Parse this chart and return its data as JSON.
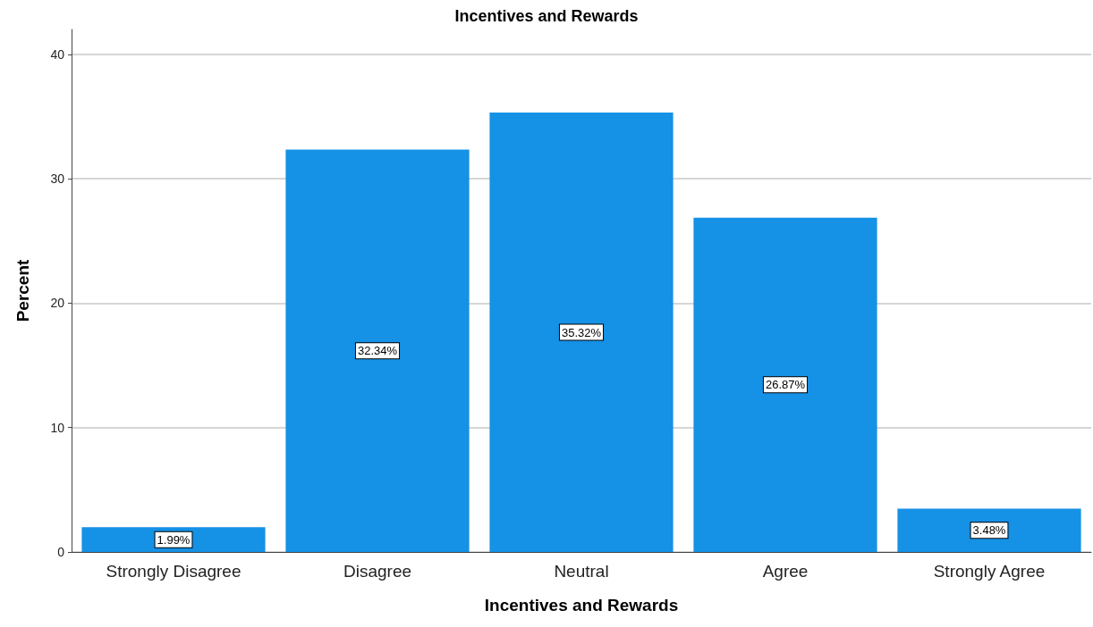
{
  "chart_data": {
    "type": "bar",
    "title": "Incentives and Rewards",
    "xlabel": "Incentives and Rewards",
    "ylabel": "Percent",
    "categories": [
      "Strongly Disagree",
      "Disagree",
      "Neutral",
      "Agree",
      "Strongly Agree"
    ],
    "values": [
      1.99,
      32.34,
      35.32,
      26.87,
      3.48
    ],
    "value_labels": [
      "1.99%",
      "32.34%",
      "35.32%",
      "26.87%",
      "3.48%"
    ],
    "color": "#1591e6",
    "ylim": [
      0,
      42
    ],
    "yticks": [
      0,
      10,
      20,
      30,
      40
    ],
    "grid": "y"
  }
}
